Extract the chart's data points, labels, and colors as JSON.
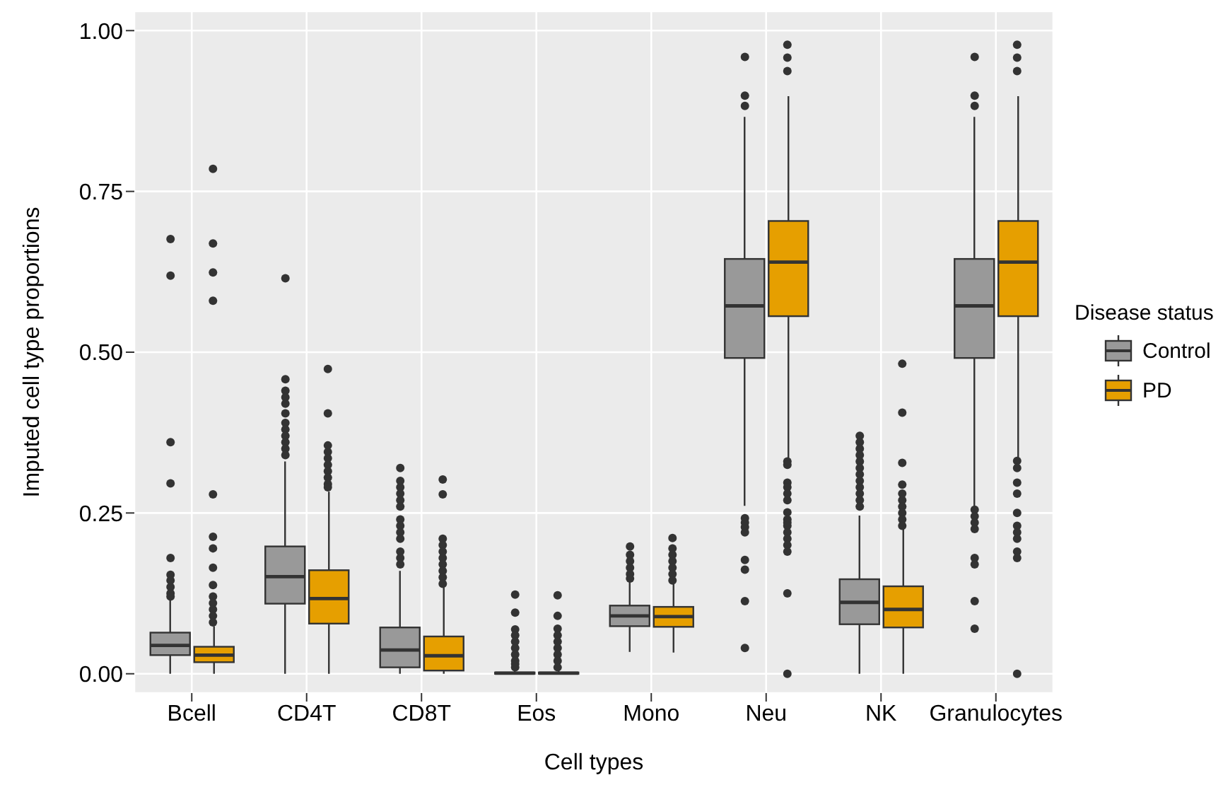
{
  "chart_data": {
    "type": "box",
    "xlabel": "Cell types",
    "ylabel": "Imputed cell type proportions",
    "legend_title": "Disease status",
    "legend": "right",
    "grid": true,
    "categories": [
      "Bcell",
      "CD4T",
      "CD8T",
      "Eos",
      "Mono",
      "Neu",
      "NK",
      "Granulocytes"
    ],
    "ylim": [
      -0.03,
      1.03
    ],
    "yticks": [
      {
        "value": 0,
        "label": "0.00"
      },
      {
        "value": 0.25,
        "label": "0.25"
      },
      {
        "value": 0.5,
        "label": "0.50"
      },
      {
        "value": 0.75,
        "label": "0.75"
      },
      {
        "value": 1,
        "label": "1.00"
      }
    ],
    "series": [
      {
        "name": "Control",
        "color": "#999999",
        "boxes": [
          {
            "low": 0,
            "q1": 0.029,
            "median": 0.044,
            "q3": 0.064,
            "high": 0.115,
            "outliers": [
              0.676,
              0.619,
              0.36,
              0.296,
              0.18,
              0.154,
              0.145,
              0.135,
              0.125,
              0.12
            ]
          },
          {
            "low": 0,
            "q1": 0.109,
            "median": 0.151,
            "q3": 0.198,
            "high": 0.33,
            "outliers": [
              0.615,
              0.458,
              0.44,
              0.43,
              0.42,
              0.405,
              0.39,
              0.38,
              0.37,
              0.36,
              0.35,
              0.34
            ]
          },
          {
            "low": 0,
            "q1": 0.01,
            "median": 0.037,
            "q3": 0.072,
            "high": 0.16,
            "outliers": [
              0.32,
              0.3,
              0.29,
              0.28,
              0.27,
              0.26,
              0.24,
              0.23,
              0.22,
              0.21,
              0.19,
              0.18,
              0.17
            ]
          },
          {
            "low": 0,
            "q1": 0,
            "median": 0.001,
            "q3": 0.002,
            "high": 0.005,
            "outliers": [
              0.123,
              0.095,
              0.069,
              0.06,
              0.05,
              0.04,
              0.03,
              0.02,
              0.015,
              0.01
            ]
          },
          {
            "low": 0.034,
            "q1": 0.074,
            "median": 0.09,
            "q3": 0.106,
            "high": 0.144,
            "outliers": [
              0.198,
              0.185,
              0.175,
              0.165,
              0.155,
              0.148
            ]
          },
          {
            "low": 0.261,
            "q1": 0.491,
            "median": 0.572,
            "q3": 0.645,
            "high": 0.866,
            "outliers": [
              0.959,
              0.899,
              0.883,
              0.242,
              0.235,
              0.228,
              0.22,
              0.177,
              0.162,
              0.113,
              0.04
            ]
          },
          {
            "low": 0,
            "q1": 0.077,
            "median": 0.111,
            "q3": 0.147,
            "high": 0.246,
            "outliers": [
              0.37,
              0.36,
              0.35,
              0.34,
              0.33,
              0.32,
              0.31,
              0.3,
              0.29,
              0.28,
              0.27,
              0.26
            ]
          },
          {
            "low": 0.261,
            "q1": 0.491,
            "median": 0.572,
            "q3": 0.645,
            "high": 0.866,
            "outliers": [
              0.959,
              0.899,
              0.883,
              0.255,
              0.245,
              0.235,
              0.225,
              0.18,
              0.17,
              0.113,
              0.07
            ]
          }
        ]
      },
      {
        "name": "PD",
        "color": "#e69f00",
        "boxes": [
          {
            "low": 0,
            "q1": 0.018,
            "median": 0.029,
            "q3": 0.042,
            "high": 0.074,
            "outliers": [
              0.785,
              0.669,
              0.624,
              0.58,
              0.279,
              0.213,
              0.195,
              0.165,
              0.138,
              0.12,
              0.11,
              0.1,
              0.09,
              0.08
            ]
          },
          {
            "low": 0,
            "q1": 0.078,
            "median": 0.117,
            "q3": 0.161,
            "high": 0.283,
            "outliers": [
              0.474,
              0.405,
              0.355,
              0.345,
              0.335,
              0.325,
              0.315,
              0.305,
              0.295,
              0.29
            ]
          },
          {
            "low": 0,
            "q1": 0.005,
            "median": 0.028,
            "q3": 0.058,
            "high": 0.134,
            "outliers": [
              0.302,
              0.279,
              0.21,
              0.2,
              0.19,
              0.18,
              0.17,
              0.16,
              0.15,
              0.14
            ]
          },
          {
            "low": 0,
            "q1": 0,
            "median": 0.001,
            "q3": 0.002,
            "high": 0.005,
            "outliers": [
              0.122,
              0.09,
              0.07,
              0.06,
              0.05,
              0.04,
              0.03,
              0.02,
              0.01
            ]
          },
          {
            "low": 0.033,
            "q1": 0.073,
            "median": 0.089,
            "q3": 0.104,
            "high": 0.14,
            "outliers": [
              0.211,
              0.195,
              0.185,
              0.175,
              0.165,
              0.155,
              0.145
            ]
          },
          {
            "low": 0.334,
            "q1": 0.556,
            "median": 0.64,
            "q3": 0.704,
            "high": 0.898,
            "outliers": [
              0.978,
              0.958,
              0.937,
              0.33,
              0.325,
              0.297,
              0.29,
              0.28,
              0.27,
              0.251,
              0.24,
              0.235,
              0.23,
              0.22,
              0.21,
              0.2,
              0.19,
              0.125,
              0
            ]
          },
          {
            "low": 0,
            "q1": 0.072,
            "median": 0.1,
            "q3": 0.136,
            "high": 0.226,
            "outliers": [
              0.482,
              0.406,
              0.328,
              0.294,
              0.28,
              0.27,
              0.26,
              0.25,
              0.24,
              0.23
            ]
          },
          {
            "low": 0.334,
            "q1": 0.556,
            "median": 0.64,
            "q3": 0.704,
            "high": 0.898,
            "outliers": [
              0.978,
              0.958,
              0.937,
              0.331,
              0.32,
              0.297,
              0.28,
              0.25,
              0.23,
              0.22,
              0.21,
              0.19,
              0.18,
              0
            ]
          }
        ]
      }
    ]
  }
}
